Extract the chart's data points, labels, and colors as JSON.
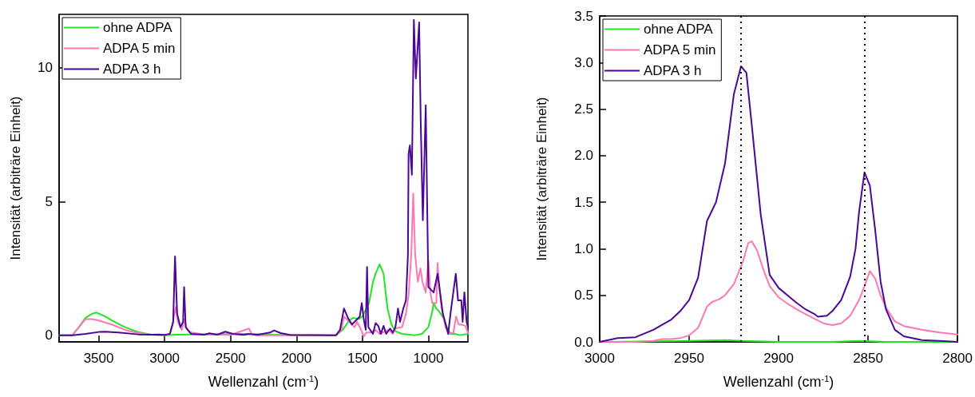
{
  "chart_data": [
    {
      "type": "line",
      "xlabel": "Wellenzahl (cm$^{-1}$)",
      "ylabel": "Intensität (arbiträre Einheit)",
      "xlim": [
        3800,
        700
      ],
      "xticks": [
        3500,
        3000,
        2500,
        2000,
        1500,
        1000
      ],
      "ylim": [
        -0.25,
        12
      ],
      "yticks": [
        0,
        5,
        10
      ],
      "legend": "top left",
      "grid": false,
      "marker": "none",
      "line_style": "solid",
      "series": [
        {
          "name": "ohne ADPA",
          "color": "#22e622",
          "x": [
            3800,
            3700,
            3650,
            3600,
            3550,
            3520,
            3450,
            3400,
            3300,
            3200,
            3100,
            3000,
            2920,
            2360,
            2000,
            1700,
            1650,
            1600,
            1570,
            1530,
            1500,
            1450,
            1420,
            1400,
            1370,
            1340,
            1310,
            1280,
            1250,
            1200,
            1100,
            1050,
            1000,
            970,
            960,
            940,
            920,
            880,
            860,
            830,
            800,
            760,
            700
          ],
          "values": [
            0,
            0,
            0.3,
            0.65,
            0.8,
            0.85,
            0.7,
            0.55,
            0.3,
            0.12,
            0.02,
            0,
            0.02,
            0.05,
            0,
            0,
            0.2,
            0.55,
            0.65,
            0.6,
            0.7,
            1.2,
            2.0,
            2.3,
            2.65,
            2.3,
            1.0,
            0.4,
            0.15,
            0.05,
            0,
            0.05,
            0.3,
            0.9,
            1.2,
            1.0,
            0.9,
            0.6,
            0.3,
            0.05,
            0.05,
            0,
            0.05
          ]
        },
        {
          "name": "ADPA 5 min",
          "color": "#ff77b4",
          "x": [
            3800,
            3700,
            3650,
            3600,
            3550,
            3500,
            3400,
            3300,
            3200,
            3100,
            3000,
            2960,
            2940,
            2930,
            2915,
            2900,
            2870,
            2850,
            2830,
            2800,
            2700,
            2600,
            2500,
            2360,
            2340,
            2300,
            1700,
            1660,
            1640,
            1600,
            1560,
            1540,
            1510,
            1490,
            1470,
            1440,
            1400,
            1370,
            1300,
            1270,
            1250,
            1200,
            1170,
            1150,
            1130,
            1115,
            1100,
            1080,
            1060,
            1045,
            1020,
            1000,
            985,
            970,
            940,
            930,
            920,
            900,
            870,
            840,
            810,
            790,
            770,
            750,
            720,
            700
          ],
          "values": [
            0,
            0,
            0.3,
            0.6,
            0.6,
            0.55,
            0.4,
            0.2,
            0.08,
            0.02,
            0,
            0.05,
            0.4,
            0.7,
            1.05,
            0.5,
            0.2,
            0.6,
            0.2,
            0.1,
            0.03,
            0.02,
            0.01,
            0.25,
            0.05,
            0,
            0,
            0.2,
            0.7,
            0.5,
            0.3,
            0.5,
            0.2,
            -0.05,
            0.1,
            0.1,
            0.2,
            0.05,
            0.2,
            0.05,
            0.25,
            0.3,
            0.8,
            1.5,
            3,
            5.3,
            3,
            2.0,
            2.5,
            2.0,
            1.6,
            2.8,
            1.6,
            1.2,
            1.2,
            2.7,
            2.0,
            1.0,
            0.3,
            0.05,
            0.1,
            0.7,
            0.4,
            0.4,
            0.35,
            0.1
          ]
        },
        {
          "name": "ADPA 3 h",
          "color": "#4b0896",
          "x": [
            3800,
            3700,
            3600,
            3500,
            3450,
            3350,
            3200,
            3100,
            3050,
            3000,
            2960,
            2935,
            2921,
            2905,
            2880,
            2860,
            2852,
            2840,
            2800,
            2700,
            2660,
            2600,
            2540,
            2480,
            2400,
            2360,
            2300,
            2200,
            2170,
            2120,
            2050,
            1700,
            1670,
            1640,
            1610,
            1580,
            1550,
            1520,
            1505,
            1490,
            1475,
            1465,
            1455,
            1420,
            1400,
            1380,
            1360,
            1340,
            1320,
            1290,
            1270,
            1250,
            1230,
            1215,
            1190,
            1170,
            1155,
            1150,
            1140,
            1125,
            1110,
            1095,
            1070,
            1058,
            1042,
            1020,
            1000,
            960,
            930,
            890,
            850,
            830,
            792,
            775,
            750,
            740,
            727,
            710,
            700
          ],
          "values": [
            0,
            0,
            0.05,
            0.12,
            0.13,
            0.1,
            0.03,
            0.02,
            0.03,
            0.01,
            0.05,
            0.5,
            2.95,
            0.8,
            0.3,
            0.5,
            1.8,
            0.3,
            0.05,
            0.02,
            0.07,
            0.02,
            0.13,
            0.05,
            0.01,
            0.05,
            0.01,
            0.1,
            0.18,
            0.08,
            0.01,
            0,
            0.2,
            1.0,
            0.65,
            0.4,
            0.55,
            0.7,
            1.2,
            0.6,
            0.2,
            2.55,
            0.3,
            0.05,
            0.45,
            0.35,
            0.05,
            0.35,
            0.05,
            0.25,
            0.1,
            0.3,
            1.0,
            0.5,
            1.0,
            1.3,
            3,
            6.8,
            7.1,
            6.0,
            11.8,
            9.6,
            11.7,
            8,
            4.3,
            8.6,
            1.8,
            1.6,
            2.3,
            0.8,
            0.05,
            0.9,
            2.3,
            1.3,
            1.3,
            0.5,
            1.6,
            0.5,
            0.3
          ]
        }
      ]
    },
    {
      "type": "line",
      "xlabel": "Wellenzahl (cm$^{-1}$)",
      "ylabel": "Intensität (arbiträre Einheit)",
      "xlim": [
        3000,
        2800
      ],
      "xticks": [
        3000,
        2950,
        2900,
        2850,
        2800
      ],
      "ylim": [
        0,
        3.5
      ],
      "yticks": [
        {
          "value": 0,
          "label": "0.0"
        },
        0.5,
        {
          "value": 1,
          "label": "1.0"
        },
        1.5,
        {
          "value": 2,
          "label": "2.0"
        },
        2.5,
        {
          "value": 3,
          "label": "3.0"
        },
        3.5
      ],
      "legend": "top left",
      "grid": false,
      "marker": "none",
      "line_style": "solid",
      "ref_lines": [
        {
          "axis": "x",
          "value": 2921,
          "color": "#000000",
          "line_style": "dotted"
        },
        {
          "axis": "x",
          "value": 2852,
          "color": "#000000",
          "line_style": "dotted"
        }
      ],
      "series": [
        {
          "name": "ohne ADPA",
          "color": "#22e622",
          "x": [
            3000,
            2950,
            2930,
            2920,
            2900,
            2870,
            2855,
            2840,
            2800
          ],
          "values": [
            0,
            0.01,
            0.02,
            0.01,
            0,
            0,
            0.01,
            0,
            0
          ]
        },
        {
          "name": "ADPA 5 min",
          "color": "#ff77b4",
          "x": [
            3000,
            2980,
            2970,
            2965,
            2960,
            2955,
            2950,
            2945,
            2940,
            2937,
            2933,
            2930,
            2925,
            2920,
            2917,
            2915,
            2912,
            2908,
            2905,
            2900,
            2895,
            2890,
            2885,
            2880,
            2875,
            2870,
            2865,
            2860,
            2855,
            2852,
            2849,
            2846,
            2843,
            2840,
            2835,
            2830,
            2820,
            2810,
            2800
          ],
          "values": [
            0,
            0,
            0.01,
            0.03,
            0.03,
            0.04,
            0.07,
            0.15,
            0.38,
            0.43,
            0.46,
            0.5,
            0.62,
            0.86,
            1.06,
            1.08,
            0.98,
            0.75,
            0.6,
            0.48,
            0.41,
            0.35,
            0.3,
            0.25,
            0.2,
            0.18,
            0.2,
            0.28,
            0.45,
            0.6,
            0.76,
            0.68,
            0.5,
            0.37,
            0.22,
            0.17,
            0.13,
            0.1,
            0.08
          ]
        },
        {
          "name": "ADPA 3 h",
          "color": "#4b0896",
          "x": [
            3000,
            2990,
            2980,
            2970,
            2960,
            2955,
            2950,
            2945,
            2940,
            2935,
            2930,
            2925,
            2921,
            2918,
            2915,
            2910,
            2905,
            2900,
            2895,
            2890,
            2885,
            2880,
            2878,
            2873,
            2870,
            2865,
            2860,
            2857,
            2855,
            2852,
            2849,
            2846,
            2843,
            2840,
            2835,
            2830,
            2820,
            2810,
            2800
          ],
          "values": [
            0,
            0.04,
            0.05,
            0.13,
            0.24,
            0.33,
            0.45,
            0.69,
            1.3,
            1.5,
            1.91,
            2.66,
            2.96,
            2.89,
            2.33,
            1.37,
            0.72,
            0.58,
            0.5,
            0.42,
            0.35,
            0.3,
            0.27,
            0.28,
            0.33,
            0.45,
            0.7,
            1.0,
            1.4,
            1.82,
            1.68,
            1.2,
            0.65,
            0.35,
            0.13,
            0.06,
            0.02,
            0.01,
            0
          ]
        }
      ]
    }
  ]
}
